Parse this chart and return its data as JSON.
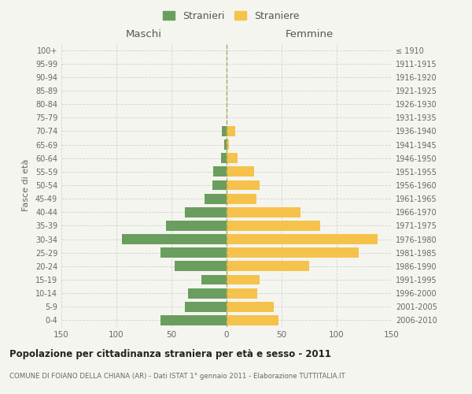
{
  "age_groups": [
    "0-4",
    "5-9",
    "10-14",
    "15-19",
    "20-24",
    "25-29",
    "30-34",
    "35-39",
    "40-44",
    "45-49",
    "50-54",
    "55-59",
    "60-64",
    "65-69",
    "70-74",
    "75-79",
    "80-84",
    "85-89",
    "90-94",
    "95-99",
    "100+"
  ],
  "birth_years": [
    "2006-2010",
    "2001-2005",
    "1996-2000",
    "1991-1995",
    "1986-1990",
    "1981-1985",
    "1976-1980",
    "1971-1975",
    "1966-1970",
    "1961-1965",
    "1956-1960",
    "1951-1955",
    "1946-1950",
    "1941-1945",
    "1936-1940",
    "1931-1935",
    "1926-1930",
    "1921-1925",
    "1916-1920",
    "1911-1915",
    "≤ 1910"
  ],
  "maschi": [
    60,
    38,
    35,
    23,
    47,
    60,
    95,
    55,
    38,
    20,
    13,
    12,
    5,
    2,
    4,
    0,
    0,
    0,
    0,
    0,
    0
  ],
  "femmine": [
    47,
    43,
    28,
    30,
    75,
    120,
    137,
    85,
    67,
    27,
    30,
    25,
    10,
    2,
    8,
    0,
    0,
    0,
    0,
    0,
    0
  ],
  "color_maschi": "#6a9e5e",
  "color_femmine": "#f5c24c",
  "title": "Popolazione per cittadinanza straniera per età e sesso - 2011",
  "subtitle": "COMUNE DI FOIANO DELLA CHIANA (AR) - Dati ISTAT 1° gennaio 2011 - Elaborazione TUTTITALIA.IT",
  "ylabel_left": "Fasce di età",
  "xlabel_left": "Maschi",
  "xlabel_right": "Femmine",
  "legend_maschi": "Stranieri",
  "legend_femmine": "Straniere",
  "xlim": 150,
  "background_color": "#f5f5f0",
  "grid_color": "#cccccc",
  "dashed_line_color": "#aaa855"
}
